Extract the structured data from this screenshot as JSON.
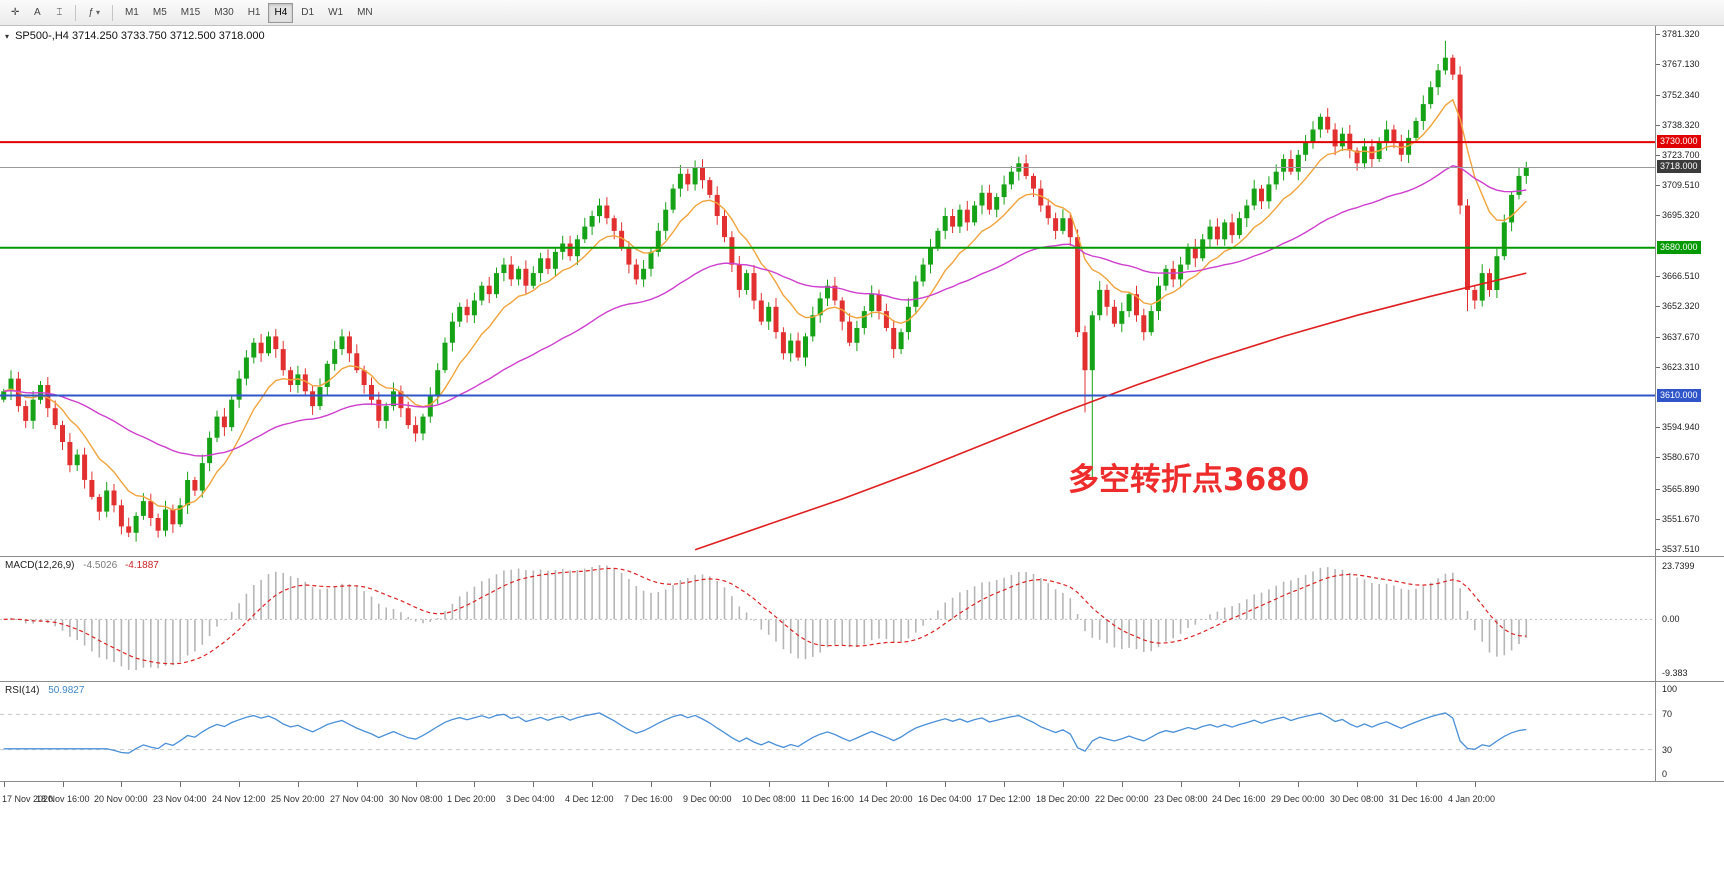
{
  "window": {
    "background": "#ffffff"
  },
  "toolbar": {
    "tools": [
      {
        "id": "crosshair-tool",
        "glyph": "✛"
      },
      {
        "id": "text-tool",
        "glyph": "A"
      },
      {
        "id": "ibeam-tool",
        "glyph": "⌶"
      }
    ],
    "indicators_button": {
      "glyph": "ƒ",
      "caret": "▾"
    },
    "timeframes": [
      "M1",
      "M5",
      "M15",
      "M30",
      "H1",
      "H4",
      "D1",
      "W1",
      "MN"
    ],
    "active_timeframe": "H4"
  },
  "chart": {
    "collapse_icon": "▾",
    "symbol": "SP500-,H4",
    "ohlc_text": "3714.250 3733.750 3712.500 3718.000",
    "annotation": {
      "text": "多空转折点3680",
      "color": "#ee2c2c"
    },
    "price_axis": {
      "min": 3534.0,
      "max": 3785.0,
      "labels": [
        "3781.320",
        "3767.130",
        "3752.340",
        "3738.320",
        "3723.700",
        "3709.510",
        "3695.320",
        "3666.510",
        "3652.320",
        "3637.670",
        "3623.310",
        "3594.940",
        "3580.670",
        "3565.890",
        "3551.670",
        "3537.510"
      ]
    },
    "levels": [
      {
        "price": 3730.0,
        "label": "3730.000",
        "color": "#e00000",
        "width": 2
      },
      {
        "price": 3718.0,
        "label": "3718.000",
        "color": "#9a9a9a",
        "width": 1,
        "badge": "#3b3b3b"
      },
      {
        "price": 3680.0,
        "label": "3680.000",
        "color": "#009900",
        "width": 2
      },
      {
        "price": 3610.0,
        "label": "3610.000",
        "color": "#2f55c8",
        "width": 2
      }
    ]
  },
  "macd_panel": {
    "label": "MACD(12,26,9)",
    "value_main": "-4.5026",
    "value_signal": "-4.1887",
    "axis_labels": [
      "23.7399",
      "0.00",
      "-9.383"
    ],
    "histogram_color": "#b6b6b6",
    "signal_color": "#dd2222"
  },
  "rsi_panel": {
    "label": "RSI(14)",
    "value": "50.9827",
    "period": 14,
    "axis_labels": [
      "100",
      "70",
      "30",
      "0"
    ],
    "levels": [
      70,
      30
    ],
    "line_color": "#4a90d9"
  },
  "chart_data": {
    "type": "candlestick",
    "symbol": "SP500-",
    "timeframe": "H4",
    "title": "SP500-,H4 3714.250 3733.750 3712.500 3718.000",
    "ylim": [
      3534,
      3785
    ],
    "bars_per_time_label": 8,
    "bull_color": "#16a216",
    "bear_color": "#e23030",
    "time_labels": [
      "17 Nov 2020",
      "18 Nov 16:00",
      "20 Nov 00:00",
      "23 Nov 04:00",
      "24 Nov 12:00",
      "25 Nov 20:00",
      "27 Nov 04:00",
      "30 Nov 08:00",
      "1 Dec 20:00",
      "3 Dec 04:00",
      "4 Dec 12:00",
      "7 Dec 16:00",
      "9 Dec 00:00",
      "10 Dec 08:00",
      "11 Dec 16:00",
      "14 Dec 20:00",
      "16 Dec 04:00",
      "17 Dec 12:00",
      "18 Dec 20:00",
      "22 Dec 00:00",
      "23 Dec 08:00",
      "24 Dec 16:00",
      "29 Dec 00:00",
      "30 Dec 08:00",
      "31 Dec 16:00",
      "4 Jan 20:00"
    ],
    "closes": [
      3612,
      3618,
      3605,
      3598,
      3608,
      3615,
      3604,
      3596,
      3588,
      3577,
      3582,
      3570,
      3562,
      3555,
      3565,
      3558,
      3548,
      3545,
      3553,
      3560,
      3552,
      3546,
      3556,
      3549,
      3558,
      3570,
      3565,
      3578,
      3590,
      3600,
      3595,
      3608,
      3618,
      3628,
      3635,
      3630,
      3638,
      3632,
      3622,
      3615,
      3620,
      3612,
      3605,
      3614,
      3625,
      3632,
      3638,
      3630,
      3622,
      3615,
      3608,
      3598,
      3605,
      3612,
      3604,
      3596,
      3592,
      3600,
      3610,
      3622,
      3635,
      3645,
      3652,
      3648,
      3655,
      3662,
      3658,
      3668,
      3672,
      3665,
      3670,
      3662,
      3668,
      3675,
      3670,
      3678,
      3682,
      3676,
      3684,
      3690,
      3695,
      3700,
      3694,
      3688,
      3680,
      3672,
      3665,
      3670,
      3678,
      3688,
      3698,
      3708,
      3715,
      3710,
      3718,
      3712,
      3705,
      3695,
      3685,
      3672,
      3660,
      3668,
      3655,
      3645,
      3652,
      3640,
      3630,
      3636,
      3628,
      3638,
      3648,
      3656,
      3662,
      3655,
      3645,
      3635,
      3642,
      3650,
      3658,
      3650,
      3642,
      3632,
      3640,
      3652,
      3664,
      3672,
      3680,
      3688,
      3695,
      3690,
      3698,
      3692,
      3700,
      3706,
      3698,
      3704,
      3710,
      3716,
      3720,
      3714,
      3708,
      3700,
      3694,
      3688,
      3694,
      3685,
      3640,
      3622,
      3648,
      3660,
      3652,
      3644,
      3650,
      3658,
      3648,
      3640,
      3650,
      3662,
      3670,
      3665,
      3672,
      3680,
      3675,
      3684,
      3690,
      3684,
      3692,
      3686,
      3694,
      3700,
      3708,
      3702,
      3710,
      3716,
      3722,
      3716,
      3724,
      3730,
      3736,
      3742,
      3736,
      3728,
      3734,
      3726,
      3720,
      3728,
      3722,
      3730,
      3736,
      3730,
      3724,
      3732,
      3740,
      3748,
      3756,
      3764,
      3770,
      3762,
      3700,
      3660,
      3655,
      3668,
      3660,
      3676,
      3692,
      3705,
      3714,
      3718
    ],
    "wick_overrides": {
      "147": [
        3,
        20
      ],
      "148": [
        2,
        52
      ],
      "196": [
        8,
        2
      ],
      "199": [
        3,
        10
      ]
    },
    "ma_fast": {
      "color": "#f2a33c",
      "period": 10
    },
    "ma_mid": {
      "color": "#cf3fcf",
      "period": 45
    },
    "ma_slow": {
      "color": "#e02020",
      "points": [
        [
          94,
          3537
        ],
        [
          104,
          3549
        ],
        [
          114,
          3561
        ],
        [
          124,
          3574
        ],
        [
          134,
          3588
        ],
        [
          144,
          3602
        ],
        [
          154,
          3615
        ],
        [
          164,
          3627
        ],
        [
          174,
          3638
        ],
        [
          184,
          3648
        ],
        [
          194,
          3657
        ],
        [
          207,
          3668
        ]
      ]
    }
  }
}
